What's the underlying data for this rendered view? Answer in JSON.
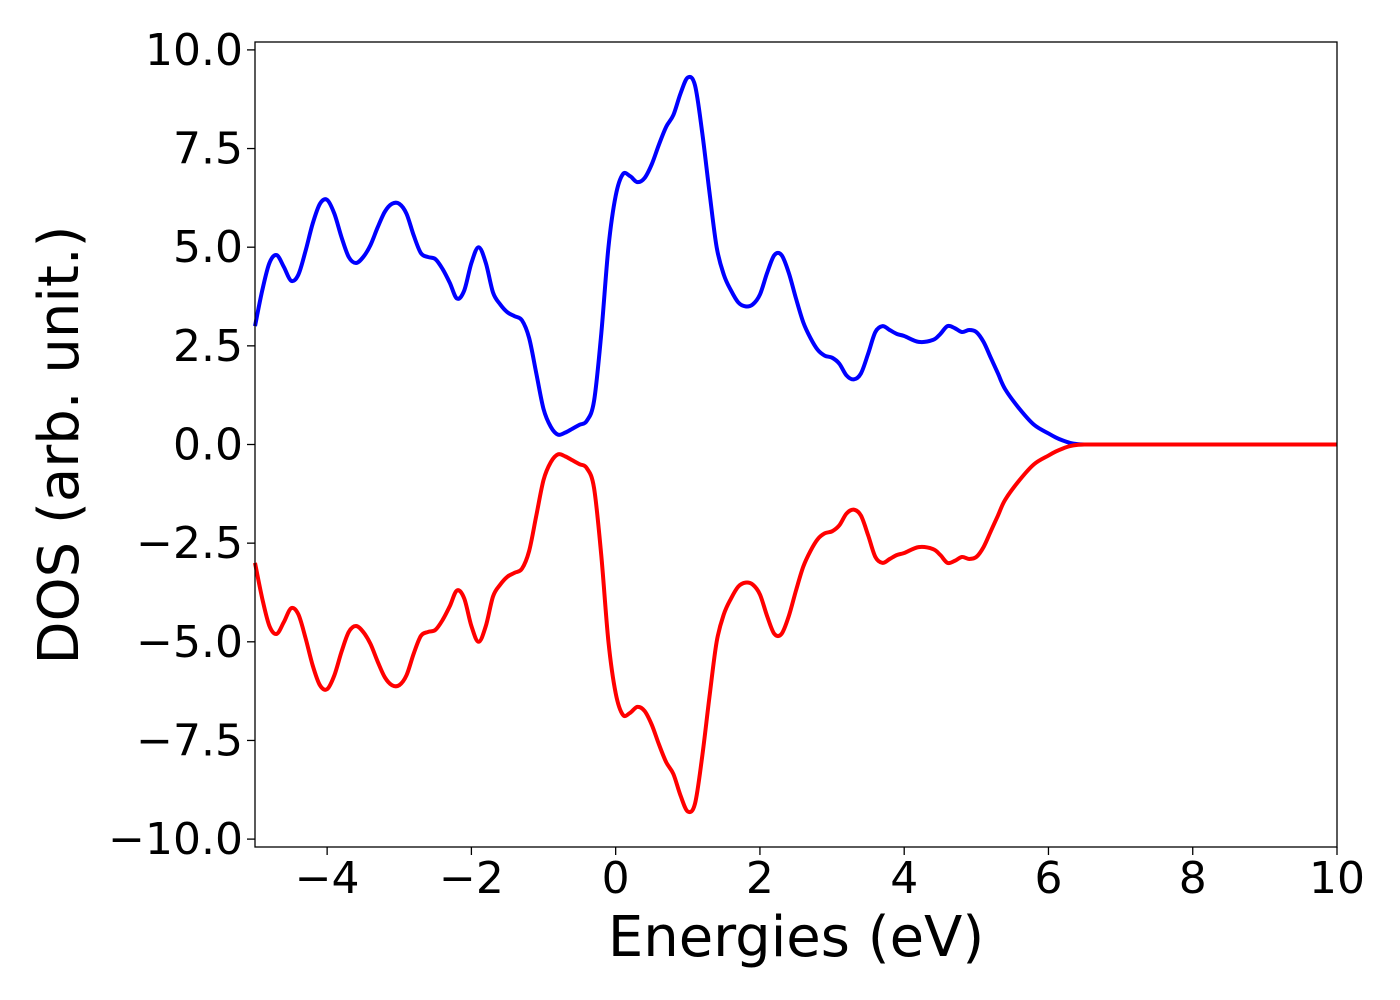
{
  "chart_data": {
    "type": "line",
    "title": "",
    "xlabel": "Energies (eV)",
    "ylabel": "DOS (arb. unit.)",
    "xlim": [
      -5,
      10
    ],
    "ylim": [
      -10.2,
      10.2
    ],
    "xticks": [
      -4,
      -2,
      0,
      2,
      4,
      6,
      8,
      10
    ],
    "xtick_labels": [
      "−4",
      "−2",
      "0",
      "2",
      "4",
      "6",
      "8",
      "10"
    ],
    "yticks": [
      -10,
      -7.5,
      -5,
      -2.5,
      0,
      2.5,
      5,
      7.5,
      10
    ],
    "ytick_labels": [
      "−10.0",
      "−7.5",
      "−5.0",
      "−2.5",
      "0.0",
      "2.5",
      "5.0",
      "7.5",
      "10.0"
    ],
    "grid": false,
    "legend": "none",
    "series": [
      {
        "color": "#0000ff",
        "x": [
          -5.0,
          -4.9,
          -4.8,
          -4.7,
          -4.6,
          -4.5,
          -4.4,
          -4.3,
          -4.2,
          -4.1,
          -4.0,
          -3.9,
          -3.8,
          -3.7,
          -3.6,
          -3.5,
          -3.4,
          -3.3,
          -3.2,
          -3.1,
          -3.0,
          -2.9,
          -2.8,
          -2.7,
          -2.6,
          -2.5,
          -2.4,
          -2.3,
          -2.2,
          -2.1,
          -2.0,
          -1.9,
          -1.8,
          -1.7,
          -1.6,
          -1.5,
          -1.4,
          -1.3,
          -1.2,
          -1.1,
          -1.0,
          -0.9,
          -0.8,
          -0.7,
          -0.6,
          -0.5,
          -0.4,
          -0.3,
          -0.2,
          -0.1,
          0.0,
          0.1,
          0.2,
          0.3,
          0.4,
          0.5,
          0.6,
          0.7,
          0.8,
          0.9,
          1.0,
          1.1,
          1.2,
          1.3,
          1.4,
          1.5,
          1.6,
          1.7,
          1.8,
          1.9,
          2.0,
          2.1,
          2.2,
          2.3,
          2.4,
          2.5,
          2.6,
          2.7,
          2.8,
          2.9,
          3.0,
          3.1,
          3.2,
          3.3,
          3.4,
          3.5,
          3.6,
          3.7,
          3.8,
          3.9,
          4.0,
          4.2,
          4.4,
          4.5,
          4.6,
          4.7,
          4.8,
          4.9,
          5.0,
          5.1,
          5.2,
          5.3,
          5.4,
          5.6,
          5.8,
          6.0,
          6.1,
          6.2,
          6.3,
          6.4,
          6.5,
          6.6,
          6.7,
          6.8,
          6.9,
          7.0,
          7.1,
          7.2,
          7.3,
          7.4,
          7.5,
          7.6,
          7.7,
          7.8,
          7.9,
          8.0,
          8.2,
          8.5,
          9.0,
          9.5,
          10.0
        ],
        "y": [
          3.0,
          3.9,
          4.6,
          4.8,
          4.5,
          4.15,
          4.3,
          4.9,
          5.6,
          6.1,
          6.2,
          5.85,
          5.25,
          4.75,
          4.6,
          4.75,
          5.05,
          5.5,
          5.9,
          6.1,
          6.1,
          5.85,
          5.3,
          4.85,
          4.75,
          4.7,
          4.45,
          4.1,
          3.7,
          3.9,
          4.6,
          5.0,
          4.6,
          3.85,
          3.55,
          3.35,
          3.25,
          3.15,
          2.7,
          1.8,
          0.9,
          0.45,
          0.25,
          0.3,
          0.4,
          0.5,
          0.6,
          1.1,
          2.8,
          5.0,
          6.3,
          6.85,
          6.8,
          6.65,
          6.75,
          7.1,
          7.6,
          8.05,
          8.35,
          8.9,
          9.3,
          9.1,
          7.9,
          6.4,
          5.0,
          4.3,
          3.9,
          3.6,
          3.5,
          3.55,
          3.8,
          4.35,
          4.8,
          4.8,
          4.35,
          3.7,
          3.1,
          2.7,
          2.4,
          2.25,
          2.2,
          2.05,
          1.75,
          1.65,
          1.8,
          2.3,
          2.85,
          3.0,
          2.9,
          2.8,
          2.75,
          2.6,
          2.65,
          2.8,
          3.0,
          2.95,
          2.85,
          2.9,
          2.85,
          2.6,
          2.2,
          1.8,
          1.4,
          0.9,
          0.5,
          0.28,
          0.18,
          0.1,
          0.04,
          0.01,
          0.0,
          0.0,
          0.0,
          0.0,
          0.0,
          0.0,
          0.0,
          0.0,
          0.0,
          0.0,
          0.0,
          0.0,
          0.0,
          0.0,
          0.0,
          0.0,
          0.0,
          0.0,
          0.0,
          0.0,
          0.0
        ]
      },
      {
        "color": "#ff0000",
        "x": [
          -5.0,
          -4.9,
          -4.8,
          -4.7,
          -4.6,
          -4.5,
          -4.4,
          -4.3,
          -4.2,
          -4.1,
          -4.0,
          -3.9,
          -3.8,
          -3.7,
          -3.6,
          -3.5,
          -3.4,
          -3.3,
          -3.2,
          -3.1,
          -3.0,
          -2.9,
          -2.8,
          -2.7,
          -2.6,
          -2.5,
          -2.4,
          -2.3,
          -2.2,
          -2.1,
          -2.0,
          -1.9,
          -1.8,
          -1.7,
          -1.6,
          -1.5,
          -1.4,
          -1.3,
          -1.2,
          -1.1,
          -1.0,
          -0.9,
          -0.8,
          -0.7,
          -0.6,
          -0.5,
          -0.4,
          -0.3,
          -0.2,
          -0.1,
          0.0,
          0.1,
          0.2,
          0.3,
          0.4,
          0.5,
          0.6,
          0.7,
          0.8,
          0.9,
          1.0,
          1.1,
          1.2,
          1.3,
          1.4,
          1.5,
          1.6,
          1.7,
          1.8,
          1.9,
          2.0,
          2.1,
          2.2,
          2.3,
          2.4,
          2.5,
          2.6,
          2.7,
          2.8,
          2.9,
          3.0,
          3.1,
          3.2,
          3.3,
          3.4,
          3.5,
          3.6,
          3.7,
          3.8,
          3.9,
          4.0,
          4.2,
          4.4,
          4.5,
          4.6,
          4.7,
          4.8,
          4.9,
          5.0,
          5.1,
          5.2,
          5.3,
          5.4,
          5.6,
          5.8,
          6.0,
          6.1,
          6.2,
          6.3,
          6.4,
          6.5,
          6.6,
          6.7,
          6.8,
          6.9,
          7.0,
          7.1,
          7.2,
          7.3,
          7.4,
          7.5,
          7.6,
          7.7,
          7.8,
          7.9,
          8.0,
          8.2,
          8.5,
          9.0,
          9.5,
          10.0
        ],
        "y": [
          -3.0,
          -3.9,
          -4.6,
          -4.8,
          -4.5,
          -4.15,
          -4.3,
          -4.9,
          -5.6,
          -6.1,
          -6.2,
          -5.85,
          -5.25,
          -4.75,
          -4.6,
          -4.75,
          -5.05,
          -5.5,
          -5.9,
          -6.1,
          -6.1,
          -5.85,
          -5.3,
          -4.85,
          -4.75,
          -4.7,
          -4.45,
          -4.1,
          -3.7,
          -3.9,
          -4.6,
          -5.0,
          -4.6,
          -3.85,
          -3.55,
          -3.35,
          -3.25,
          -3.15,
          -2.7,
          -1.8,
          -0.9,
          -0.45,
          -0.25,
          -0.3,
          -0.4,
          -0.5,
          -0.6,
          -1.1,
          -2.8,
          -5.0,
          -6.3,
          -6.85,
          -6.8,
          -6.65,
          -6.75,
          -7.1,
          -7.6,
          -8.05,
          -8.35,
          -8.9,
          -9.3,
          -9.1,
          -7.9,
          -6.4,
          -5.0,
          -4.3,
          -3.9,
          -3.6,
          -3.5,
          -3.55,
          -3.8,
          -4.35,
          -4.8,
          -4.8,
          -4.35,
          -3.7,
          -3.1,
          -2.7,
          -2.4,
          -2.25,
          -2.2,
          -2.05,
          -1.75,
          -1.65,
          -1.8,
          -2.3,
          -2.85,
          -3.0,
          -2.9,
          -2.8,
          -2.75,
          -2.6,
          -2.65,
          -2.8,
          -3.0,
          -2.95,
          -2.85,
          -2.9,
          -2.85,
          -2.6,
          -2.2,
          -1.8,
          -1.4,
          -0.9,
          -0.5,
          -0.28,
          -0.18,
          -0.1,
          -0.04,
          -0.01,
          0.0,
          0.0,
          0.0,
          0.0,
          0.0,
          0.0,
          0.0,
          0.0,
          0.0,
          0.0,
          0.0,
          0.0,
          0.0,
          0.0,
          0.0,
          0.0,
          0.0,
          0.0,
          0.0,
          0.0,
          0.0
        ]
      }
    ]
  }
}
